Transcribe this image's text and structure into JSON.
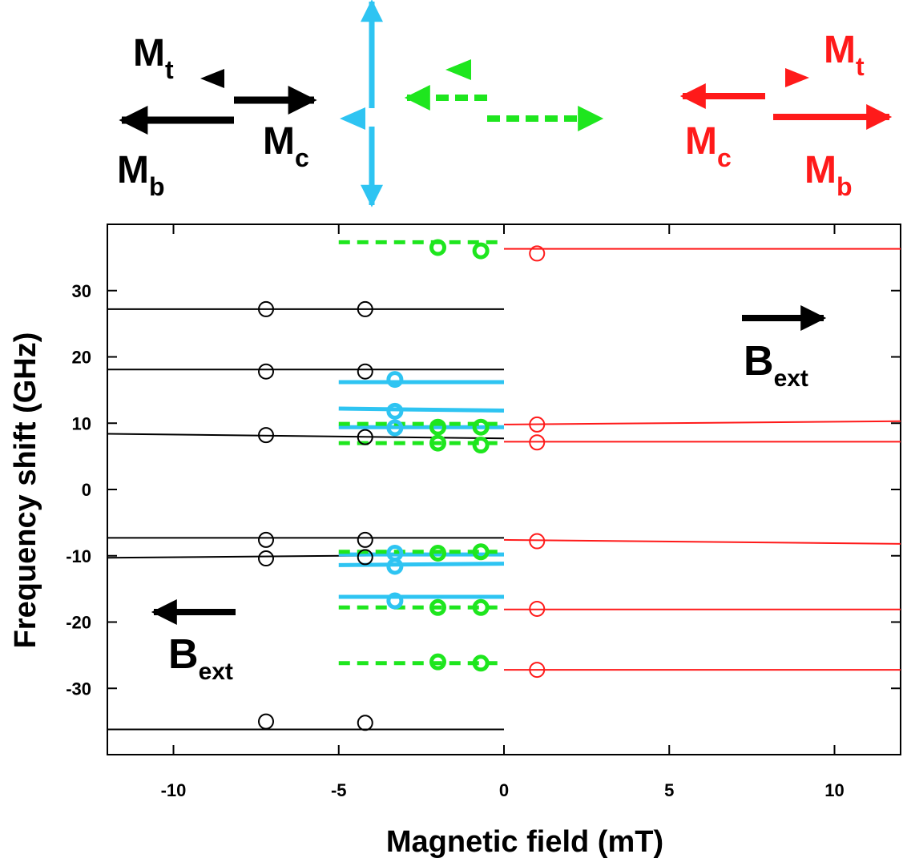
{
  "colors": {
    "black": "#000000",
    "red": "#ff1a1a",
    "cyan": "#2ec4f2",
    "green": "#1ee61e"
  },
  "schematic": {
    "black_group": {
      "top_label": "M",
      "top_sub": "t",
      "mid_label": "M",
      "mid_sub": "c",
      "bottom_label": "M",
      "bottom_sub": "b"
    },
    "red_group": {
      "top_label": "M",
      "top_sub": "t",
      "mid_label": "M",
      "mid_sub": "c",
      "bottom_label": "M",
      "bottom_sub": "b"
    }
  },
  "annotations": {
    "bext_right": {
      "label": "B",
      "sub": "ext",
      "direction": "right"
    },
    "bext_left": {
      "label": "B",
      "sub": "ext",
      "direction": "left"
    }
  },
  "chart_data": {
    "type": "scatter",
    "xlabel": "Magnetic field (mT)",
    "ylabel": "Frequency shift (GHz)",
    "xlim": [
      -12,
      12
    ],
    "ylim": [
      -40,
      40
    ],
    "xticks": [
      -10,
      -5,
      0,
      5,
      10
    ],
    "yticks": [
      -30,
      -20,
      -10,
      0,
      10,
      20,
      30
    ],
    "grid": false,
    "series": [
      {
        "color": "black",
        "marker": "open-circle",
        "points": [
          {
            "x": -7.2,
            "y": 27.2
          },
          {
            "x": -4.2,
            "y": 27.2
          },
          {
            "x": -7.2,
            "y": 17.8
          },
          {
            "x": -4.2,
            "y": 17.8
          },
          {
            "x": -7.2,
            "y": 8.2
          },
          {
            "x": -4.2,
            "y": 7.9
          },
          {
            "x": -7.2,
            "y": -7.6
          },
          {
            "x": -4.2,
            "y": -7.6
          },
          {
            "x": -7.2,
            "y": -10.4
          },
          {
            "x": -4.2,
            "y": -10.2
          },
          {
            "x": -7.2,
            "y": -35.0
          },
          {
            "x": -4.2,
            "y": -35.2
          }
        ],
        "lines": [
          {
            "x": [
              -12,
              0
            ],
            "y": [
              27.2,
              27.2
            ]
          },
          {
            "x": [
              -12,
              0
            ],
            "y": [
              18.1,
              18.1
            ]
          },
          {
            "x": [
              -12,
              0
            ],
            "y": [
              8.4,
              7.7
            ]
          },
          {
            "x": [
              -12,
              0
            ],
            "y": [
              -7.3,
              -7.3
            ]
          },
          {
            "x": [
              -12,
              0
            ],
            "y": [
              -10.3,
              -9.8
            ]
          },
          {
            "x": [
              -12,
              0
            ],
            "y": [
              -36.2,
              -36.2
            ]
          }
        ]
      },
      {
        "color": "red",
        "marker": "open-circle",
        "points": [
          {
            "x": 1.0,
            "y": 35.6
          },
          {
            "x": 1.0,
            "y": 9.8
          },
          {
            "x": 1.0,
            "y": 7.1
          },
          {
            "x": 1.0,
            "y": -7.8
          },
          {
            "x": 1.0,
            "y": -18.0
          },
          {
            "x": 1.0,
            "y": -27.2
          }
        ],
        "lines": [
          {
            "x": [
              0,
              12
            ],
            "y": [
              36.3,
              36.3
            ]
          },
          {
            "x": [
              0,
              12
            ],
            "y": [
              9.8,
              10.3
            ]
          },
          {
            "x": [
              0,
              12
            ],
            "y": [
              7.2,
              7.2
            ]
          },
          {
            "x": [
              0,
              12
            ],
            "y": [
              -7.6,
              -8.2
            ]
          },
          {
            "x": [
              0,
              12
            ],
            "y": [
              -18.1,
              -18.1
            ]
          },
          {
            "x": [
              0,
              12
            ],
            "y": [
              -27.2,
              -27.2
            ]
          }
        ]
      },
      {
        "color": "cyan",
        "marker": "thick-open-circle",
        "points": [
          {
            "x": -3.3,
            "y": 16.6
          },
          {
            "x": -3.3,
            "y": 11.8
          },
          {
            "x": -3.3,
            "y": 9.3
          },
          {
            "x": -3.3,
            "y": -9.6
          },
          {
            "x": -3.3,
            "y": -11.6
          },
          {
            "x": -3.3,
            "y": -16.8
          }
        ],
        "lines": [
          {
            "x": [
              -5,
              0
            ],
            "y": [
              16.2,
              16.2
            ]
          },
          {
            "x": [
              -5,
              0
            ],
            "y": [
              12.2,
              11.9
            ]
          },
          {
            "x": [
              -5,
              0
            ],
            "y": [
              9.4,
              9.4
            ]
          },
          {
            "x": [
              -5,
              0
            ],
            "y": [
              -9.8,
              -9.8
            ]
          },
          {
            "x": [
              -5,
              0
            ],
            "y": [
              -11.4,
              -11.2
            ]
          },
          {
            "x": [
              -5,
              0
            ],
            "y": [
              -16.2,
              -16.2
            ]
          }
        ]
      },
      {
        "color": "green",
        "marker": "thick-open-circle",
        "line_style": "dashed",
        "points": [
          {
            "x": -2.0,
            "y": 36.5
          },
          {
            "x": -0.7,
            "y": 36.0
          },
          {
            "x": -2.0,
            "y": 9.4
          },
          {
            "x": -0.7,
            "y": 9.4
          },
          {
            "x": -2.0,
            "y": 7.0
          },
          {
            "x": -0.7,
            "y": 6.7
          },
          {
            "x": -2.0,
            "y": -9.6
          },
          {
            "x": -0.7,
            "y": -9.4
          },
          {
            "x": -2.0,
            "y": -17.8
          },
          {
            "x": -0.7,
            "y": -17.8
          },
          {
            "x": -2.0,
            "y": -26.0
          },
          {
            "x": -0.7,
            "y": -26.2
          }
        ],
        "lines": [
          {
            "x": [
              -5,
              0
            ],
            "y": [
              37.3,
              37.3
            ]
          },
          {
            "x": [
              -5,
              0
            ],
            "y": [
              9.9,
              9.9
            ]
          },
          {
            "x": [
              -5,
              0
            ],
            "y": [
              7.0,
              7.0
            ]
          },
          {
            "x": [
              -5,
              0
            ],
            "y": [
              -9.4,
              -9.4
            ]
          },
          {
            "x": [
              -5,
              0
            ],
            "y": [
              -17.8,
              -17.8
            ]
          },
          {
            "x": [
              -5,
              0
            ],
            "y": [
              -26.2,
              -26.2
            ]
          }
        ]
      }
    ]
  }
}
